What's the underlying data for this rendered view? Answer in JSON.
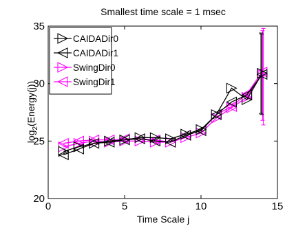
{
  "chart_data": {
    "type": "line",
    "title": "Smallest time scale = 1 msec",
    "xlabel": "Time Scale j",
    "ylabel_base": "log",
    "ylabel_sub": "2",
    "ylabel_rest": "(Energy(j))",
    "xlim": [
      0,
      15
    ],
    "ylim": [
      20,
      35
    ],
    "xticks": [
      0,
      5,
      10,
      15
    ],
    "yticks": [
      20,
      25,
      30,
      35
    ],
    "grid": false,
    "legend_position": "top-left",
    "x": [
      1,
      2,
      3,
      4,
      5,
      6,
      7,
      8,
      9,
      10,
      11,
      12,
      13,
      14
    ],
    "series": [
      {
        "name": "CAIDADir0",
        "color": "#000000",
        "marker": "triangle-right",
        "values": [
          24.1,
          24.5,
          24.8,
          25.0,
          25.1,
          25.3,
          25.3,
          25.2,
          25.6,
          26.0,
          27.3,
          29.6,
          28.6,
          30.9
        ],
        "error_bar_last": [
          27.4,
          34.4
        ]
      },
      {
        "name": "CAIDADir1",
        "color": "#000000",
        "marker": "triangle-left",
        "values": [
          23.8,
          24.3,
          24.8,
          24.9,
          25.1,
          25.2,
          25.0,
          24.9,
          25.5,
          25.9,
          27.3,
          28.4,
          29.0,
          30.8
        ],
        "error_bar_last": [
          27.3,
          34.3
        ]
      },
      {
        "name": "SwingDir0",
        "color": "#ff00ff",
        "marker": "triangle-right",
        "values": [
          24.5,
          24.8,
          25.0,
          24.9,
          25.0,
          25.0,
          24.9,
          24.9,
          25.3,
          25.7,
          27.0,
          27.9,
          28.8,
          30.8
        ],
        "error_bar_last": [
          26.8,
          34.6
        ]
      },
      {
        "name": "SwingDir1",
        "color": "#ff00ff",
        "marker": "triangle-left",
        "values": [
          24.8,
          25.0,
          25.1,
          25.1,
          25.2,
          25.2,
          25.1,
          24.9,
          25.5,
          25.9,
          27.3,
          28.0,
          29.1,
          31.0
        ],
        "error_bar_last": [
          26.4,
          34.8
        ]
      }
    ]
  }
}
